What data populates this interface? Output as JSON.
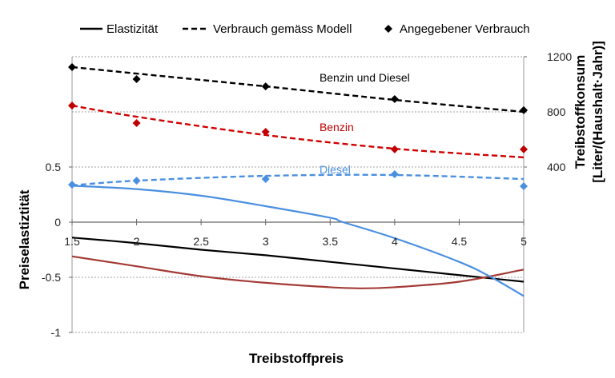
{
  "chart_data": {
    "type": "line",
    "xlabel": "Treibstoffpreis",
    "ylabel": "Preiselastiztität",
    "y2label_line1": "Treibstoffkonsum",
    "y2label_line2": "[Liter/(Haushalt·Jahr)]",
    "xlim": [
      1.5,
      5
    ],
    "ylim": [
      -1,
      1.5
    ],
    "y2lim": [
      -800,
      1200
    ],
    "xticks": [
      "1.5",
      "2",
      "2.5",
      "3",
      "3.5",
      "4",
      "4.5",
      "5"
    ],
    "yticks": [
      "-1",
      "-0.5",
      "0",
      "0.5"
    ],
    "y2ticks": [
      "400",
      "800",
      "1200"
    ],
    "grid": true,
    "legend_position": "top",
    "legend": [
      {
        "label": "Elastizität",
        "style": "solid"
      },
      {
        "label": "Verbrauch gemäss Modell",
        "style": "dashed"
      },
      {
        "label": "Angegebener Verbrauch",
        "style": "marker"
      }
    ],
    "annotations": [
      {
        "text": "Benzin und Diesel",
        "color": "#000000",
        "x": 3.2,
        "y2": 1020
      },
      {
        "text": "Benzin",
        "color": "#c00000",
        "x": 3.2,
        "y2": 660
      },
      {
        "text": "Diesel",
        "color": "#4a8fe0",
        "x": 3.2,
        "y2": 355
      }
    ],
    "elasticity_series": [
      {
        "group": "Benzin und Diesel",
        "color": "#000000",
        "x": [
          1.5,
          2,
          2.5,
          3,
          3.5,
          4,
          4.5,
          5
        ],
        "y": [
          -0.14,
          -0.19,
          -0.25,
          -0.3,
          -0.36,
          -0.42,
          -0.48,
          -0.54
        ]
      },
      {
        "group": "Benzin",
        "color": "#a33b36",
        "x": [
          1.5,
          2,
          2.5,
          3,
          3.5,
          3.75,
          4,
          4.5,
          5
        ],
        "y": [
          -0.31,
          -0.4,
          -0.49,
          -0.55,
          -0.59,
          -0.6,
          -0.59,
          -0.54,
          -0.43
        ]
      },
      {
        "group": "Diesel",
        "color": "#4a8fe0",
        "x": [
          1.5,
          2,
          2.5,
          3,
          3.5,
          3.6,
          4,
          4.5,
          4.75,
          5
        ],
        "y": [
          0.33,
          0.3,
          0.24,
          0.145,
          0.04,
          0,
          -0.145,
          -0.36,
          -0.5,
          -0.67
        ]
      }
    ],
    "model_series": [
      {
        "group": "Benzin und Diesel",
        "color": "#000000",
        "x": [
          1.5,
          2,
          3,
          4,
          5
        ],
        "y2": [
          1125,
          1078,
          985,
          887,
          800
        ]
      },
      {
        "group": "Benzin",
        "color": "#d00000",
        "x": [
          1.5,
          2,
          3,
          4,
          5
        ],
        "y2": [
          846,
          765,
          632,
          533,
          470
        ]
      },
      {
        "group": "Diesel",
        "color": "#4a8fe0",
        "x": [
          1.5,
          2,
          3,
          4,
          5
        ],
        "y2": [
          267,
          301,
          336,
          342,
          313
        ]
      }
    ],
    "reported_series": [
      {
        "group": "Benzin und Diesel",
        "color": "#000000",
        "x": [
          1.5,
          2,
          3,
          4,
          5
        ],
        "y2": [
          1125,
          1038,
          985,
          893,
          812
        ]
      },
      {
        "group": "Benzin",
        "color": "#c00000",
        "x": [
          1.5,
          2,
          3,
          4,
          5
        ],
        "y2": [
          846,
          719,
          655,
          528,
          528
        ]
      },
      {
        "group": "Diesel",
        "color": "#4a8fe0",
        "x": [
          1.5,
          2,
          3,
          4,
          5
        ],
        "y2": [
          272,
          301,
          313,
          348,
          261
        ]
      }
    ]
  }
}
